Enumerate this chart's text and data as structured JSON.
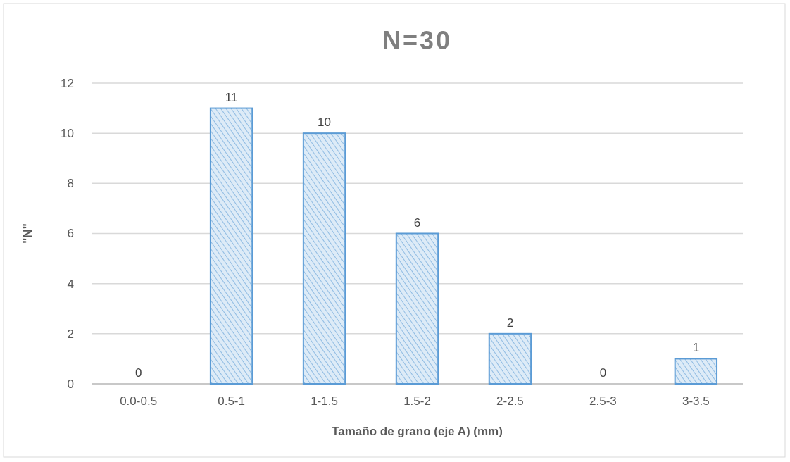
{
  "chart_data": {
    "type": "bar",
    "title": "N=30",
    "xlabel": "Tamaño de grano (eje A) (mm)",
    "ylabel": "\"N\"",
    "categories": [
      "0.0-0.5",
      "0.5-1",
      "1-1.5",
      "1.5-2",
      "2-2.5",
      "2.5-3",
      "3-3.5"
    ],
    "values": [
      0,
      11,
      10,
      6,
      2,
      0,
      1
    ],
    "color": "#ddebf7",
    "ylim": [
      0,
      12
    ],
    "yticks": [
      0,
      2,
      4,
      6,
      8,
      10,
      12
    ],
    "grid": "y",
    "data_labels": true
  }
}
